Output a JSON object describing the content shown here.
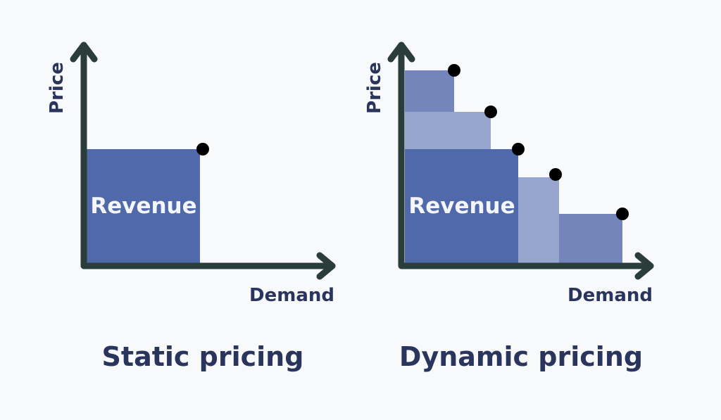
{
  "colors": {
    "axis": "#2a3d3a",
    "text": "#29355c",
    "primary": "#5069ab",
    "medium": "#7385bb",
    "light": "#97a6ce",
    "dot": "#000000",
    "background": "#f8f9fb"
  },
  "static": {
    "title": "Static pricing",
    "ylabel": "Price",
    "xlabel": "Demand",
    "area_label": "Revenue"
  },
  "dynamic": {
    "title": "Dynamic pricing",
    "ylabel": "Price",
    "xlabel": "Demand",
    "area_label": "Revenue"
  }
}
